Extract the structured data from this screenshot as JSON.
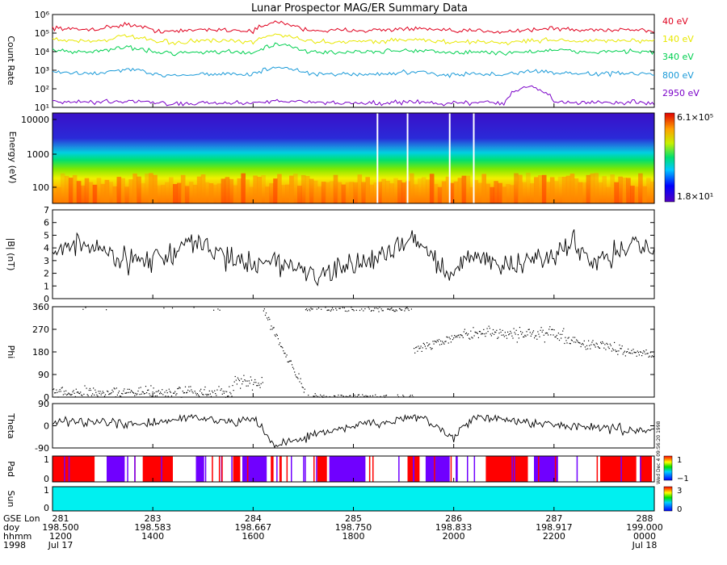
{
  "title": "Lunar Prospector MAG/ER Summary Data",
  "colors": {
    "axis": "#000000",
    "sun_fill": "#00f0f0",
    "gap": "#ffffff"
  },
  "chart_data": [
    {
      "id": "count_rate",
      "type": "line",
      "ylabel": "Count Rate",
      "yscale": "log",
      "ylim": [
        10,
        1000000
      ],
      "y_ticks": [
        "10¹",
        "10²",
        "10³",
        "10⁴",
        "10⁵",
        "10⁶"
      ],
      "series": [
        {
          "name": "40 eV",
          "color": "#e0001e",
          "values": [
            200000,
            150000,
            180000,
            300000,
            140000,
            120000,
            160000,
            150000,
            130000,
            400000,
            160000,
            130000,
            150000,
            140000,
            170000,
            160000,
            120000,
            140000,
            120000,
            150000,
            180000,
            140000,
            150000,
            160000,
            130000
          ]
        },
        {
          "name": "140 eV",
          "color": "#e8e800",
          "values": [
            45000,
            38000,
            40000,
            70000,
            35000,
            30000,
            40000,
            36000,
            32000,
            90000,
            40000,
            32000,
            38000,
            35000,
            45000,
            40000,
            30000,
            35000,
            30000,
            38000,
            45000,
            36000,
            38000,
            40000,
            32000
          ]
        },
        {
          "name": "340 eV",
          "color": "#00d050",
          "values": [
            12000,
            10000,
            11000,
            18000,
            9500,
            8500,
            10000,
            9500,
            9000,
            25000,
            10500,
            9000,
            10000,
            9500,
            12000,
            11000,
            8500,
            9500,
            8500,
            10000,
            12000,
            9500,
            10000,
            11000,
            9000
          ]
        },
        {
          "name": "800 eV",
          "color": "#1a9ad8",
          "values": [
            800,
            650,
            700,
            1100,
            600,
            550,
            650,
            620,
            580,
            1500,
            700,
            560,
            640,
            600,
            760,
            700,
            540,
            620,
            560,
            900,
            760,
            620,
            650,
            700,
            560
          ]
        },
        {
          "name": "2950 eV",
          "color": "#7a00c8",
          "values": [
            20,
            18,
            19,
            22,
            17,
            16,
            18,
            17,
            17,
            25,
            19,
            17,
            18,
            17,
            19,
            18,
            16,
            18,
            17,
            140,
            19,
            18,
            18,
            19,
            17
          ]
        }
      ]
    },
    {
      "id": "energy_spectrogram",
      "type": "heatmap",
      "ylabel": "Energy (eV)",
      "yscale": "log",
      "y_ticks": [
        "100",
        "1000",
        "10000"
      ],
      "colorbar": {
        "max_label": "6.1×10⁵",
        "min_label": "1.8×10¹",
        "scale": "log"
      },
      "data_gaps_x": [
        198.77,
        198.795,
        198.83,
        198.85
      ]
    },
    {
      "id": "b_magnitude",
      "type": "line",
      "ylabel": "|B| (nT)",
      "ylim": [
        0,
        7
      ],
      "y_ticks": [
        "0",
        "1",
        "2",
        "3",
        "4",
        "5",
        "6",
        "7"
      ],
      "x": [
        198.5,
        198.517,
        198.533,
        198.55,
        198.567,
        198.583,
        198.6,
        198.617,
        198.633,
        198.65,
        198.667,
        198.683,
        198.7,
        198.717,
        198.733,
        198.75,
        198.767,
        198.783,
        198.8,
        198.817,
        198.833,
        198.85,
        198.867,
        198.883,
        198.9,
        198.917,
        198.933,
        198.95,
        198.967,
        198.983,
        199.0
      ],
      "values": [
        3.5,
        4.5,
        4.0,
        3.5,
        3.0,
        3.2,
        3.5,
        4.5,
        3.8,
        3.0,
        2.8,
        3.0,
        2.5,
        2.0,
        1.8,
        2.8,
        3.0,
        4.0,
        5.0,
        3.0,
        2.0,
        3.5,
        3.0,
        2.5,
        3.0,
        3.5,
        4.5,
        3.0,
        3.5,
        4.5,
        3.5
      ]
    },
    {
      "id": "phi",
      "type": "scatter",
      "ylabel": "Phi",
      "ylim": [
        0,
        360
      ],
      "y_ticks": [
        "0",
        "90",
        "180",
        "270",
        "360"
      ]
    },
    {
      "id": "theta",
      "type": "line",
      "ylabel": "Theta",
      "ylim": [
        -90,
        90
      ],
      "y_ticks": [
        "-90",
        "0",
        "90"
      ],
      "x": [
        198.5,
        198.517,
        198.533,
        198.55,
        198.567,
        198.583,
        198.6,
        198.617,
        198.633,
        198.65,
        198.667,
        198.683,
        198.7,
        198.717,
        198.733,
        198.75,
        198.767,
        198.783,
        198.8,
        198.817,
        198.833,
        198.85,
        198.867,
        198.883,
        198.9,
        198.917,
        198.933,
        198.95,
        198.967,
        198.983,
        199.0
      ],
      "values": [
        10,
        20,
        15,
        10,
        5,
        10,
        20,
        40,
        20,
        10,
        40,
        -80,
        -60,
        -40,
        -20,
        0,
        10,
        20,
        30,
        10,
        -60,
        40,
        30,
        20,
        10,
        5,
        0,
        -10,
        -10,
        -20,
        -20
      ]
    },
    {
      "id": "pad",
      "type": "heatmap",
      "ylabel": "Pad",
      "y_ticks": [
        "0",
        "1"
      ],
      "colorbar": {
        "max_label": "1",
        "min_label": "−1"
      },
      "segments": [
        {
          "start": 198.5,
          "end": 198.535,
          "value": 1
        },
        {
          "start": 198.545,
          "end": 198.56,
          "value": -1
        },
        {
          "start": 198.575,
          "end": 198.6,
          "value": 1
        },
        {
          "start": 198.62,
          "end": 198.626,
          "value": -1
        },
        {
          "start": 198.65,
          "end": 198.656,
          "value": 1
        },
        {
          "start": 198.658,
          "end": 198.678,
          "value": -1
        },
        {
          "start": 198.72,
          "end": 198.728,
          "value": 1
        },
        {
          "start": 198.73,
          "end": 198.76,
          "value": -1
        },
        {
          "start": 198.795,
          "end": 198.805,
          "value": 1
        },
        {
          "start": 198.81,
          "end": 198.83,
          "value": -1
        },
        {
          "start": 198.86,
          "end": 198.895,
          "value": 1
        },
        {
          "start": 198.9,
          "end": 198.92,
          "value": -1
        },
        {
          "start": 198.955,
          "end": 198.985,
          "value": 1
        },
        {
          "start": 198.988,
          "end": 198.998,
          "value": 1
        }
      ]
    },
    {
      "id": "sun",
      "type": "heatmap",
      "ylabel": "Sun",
      "y_ticks": [
        "0",
        "1"
      ],
      "colorbar": {
        "max_label": "3",
        "min_label": "0"
      },
      "value": 1
    }
  ],
  "x_axis": {
    "row_labels": [
      "GSE Lon",
      "doy",
      "hhmm",
      "1998"
    ],
    "ticks": [
      {
        "gse_lon": "281",
        "doy": "198.500",
        "hhmm": "1200",
        "date": "Jul 17"
      },
      {
        "gse_lon": "283",
        "doy": "198.583",
        "hhmm": "1400",
        "date": ""
      },
      {
        "gse_lon": "284",
        "doy": "198.667",
        "hhmm": "1600",
        "date": ""
      },
      {
        "gse_lon": "285",
        "doy": "198.750",
        "hhmm": "1800",
        "date": ""
      },
      {
        "gse_lon": "286",
        "doy": "198.833",
        "hhmm": "2000",
        "date": ""
      },
      {
        "gse_lon": "287",
        "doy": "198.917",
        "hhmm": "2200",
        "date": ""
      },
      {
        "gse_lon": "288",
        "doy": "199.000",
        "hhmm": "0000",
        "date": "Jul 18"
      }
    ]
  },
  "stamp": "Wed Dec 4 09:56:20 1998"
}
